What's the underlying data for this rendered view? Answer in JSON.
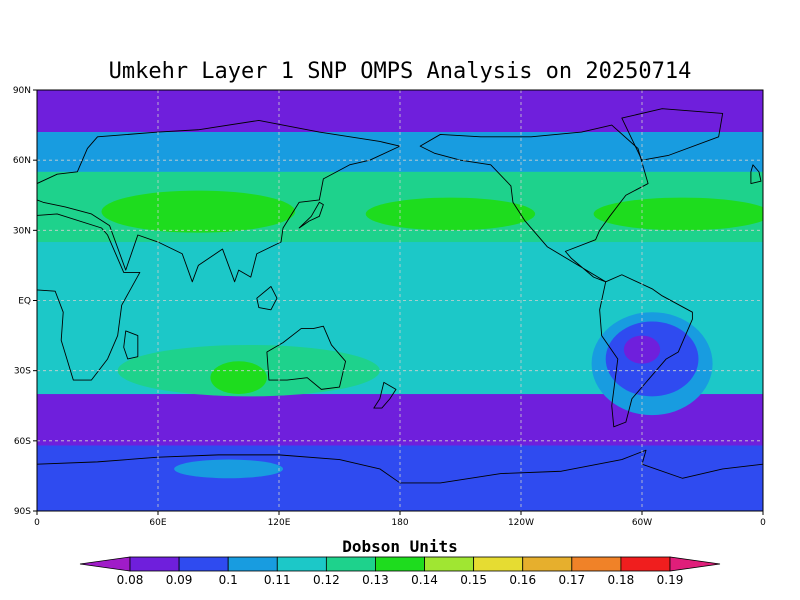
{
  "chart_data": {
    "type": "heatmap",
    "title": "Umkehr Layer 1 SNP OMPS Analysis on 20250714",
    "units_label": "Dobson Units",
    "y_ticks": [
      "90N",
      "60N",
      "30N",
      "EQ",
      "30S",
      "60S",
      "90S"
    ],
    "x_ticks": [
      "0",
      "60E",
      "120E",
      "180",
      "120W",
      "60W",
      "0"
    ],
    "lon_range": [
      0,
      360
    ],
    "lat_range": [
      -90,
      90
    ],
    "grid": true,
    "colorbar": {
      "placement": "bottom",
      "levels": [
        "0.08",
        "0.09",
        "0.1",
        "0.11",
        "0.12",
        "0.13",
        "0.14",
        "0.15",
        "0.16",
        "0.17",
        "0.18",
        "0.19"
      ],
      "colors": [
        "#a01cc8",
        "#6f1fdc",
        "#2f4bf0",
        "#189ce0",
        "#1cc8c8",
        "#1ed28c",
        "#1edc1e",
        "#a0e632",
        "#e6dc32",
        "#e6af2d",
        "#f08228",
        "#f01e1e",
        "#e01e7a"
      ]
    },
    "fields": [
      {
        "region": "north-polar-cap",
        "value": 0.085
      },
      {
        "region": "subarctic-band",
        "value": 0.105
      },
      {
        "region": "northern-midlatitude-band",
        "value": 0.125
      },
      {
        "region": "central-asia-max",
        "value": 0.135
      },
      {
        "region": "north-pacific-max",
        "value": 0.135
      },
      {
        "region": "north-atlantic-max",
        "value": 0.135
      },
      {
        "region": "tropics",
        "value": 0.115
      },
      {
        "region": "south-indian-ocean-max",
        "value": 0.135
      },
      {
        "region": "south-america-min",
        "value": 0.085
      },
      {
        "region": "southern-ocean-band",
        "value": 0.085
      },
      {
        "region": "antarctica",
        "value": 0.095
      },
      {
        "region": "east-antarctica-pocket",
        "value": 0.105
      }
    ]
  }
}
